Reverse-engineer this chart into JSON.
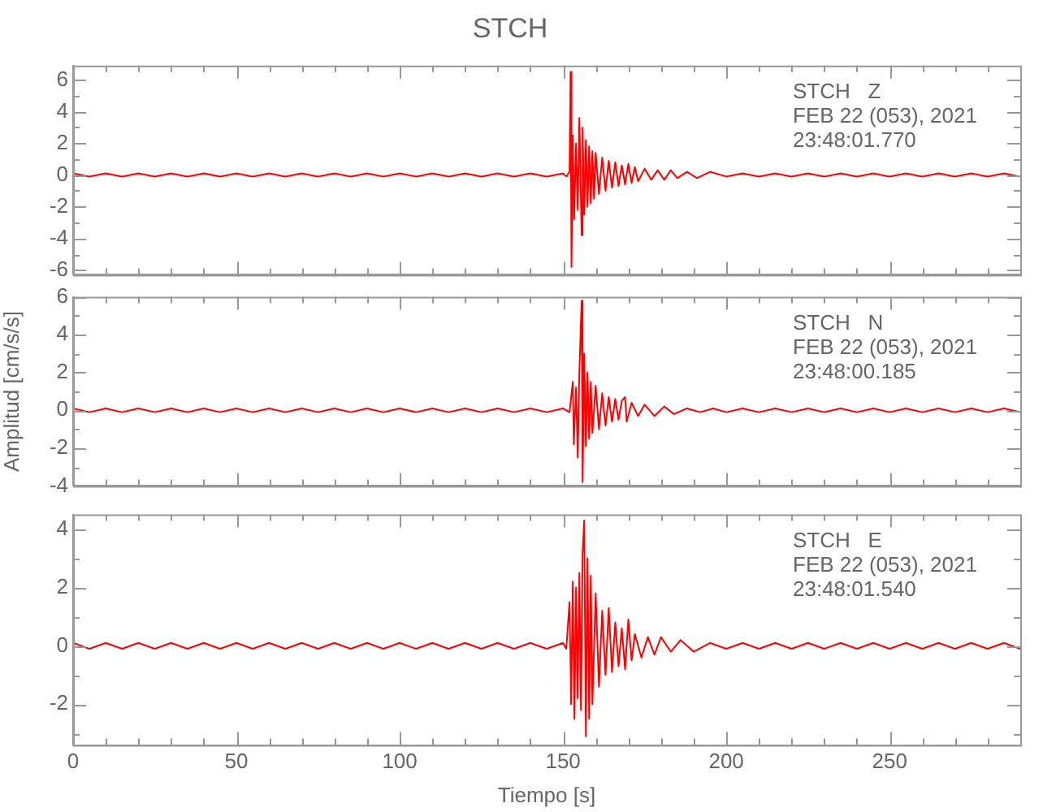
{
  "chart_data": [
    {
      "type": "line",
      "title": "STCH",
      "annotations": [
        "STCH   Z",
        "FEB 22 (053), 2021",
        "23:48:01.770"
      ],
      "xlim": [
        0,
        290
      ],
      "xticks": [
        0,
        {
          "value": 10,
          "label": null
        },
        {
          "value": 20,
          "label": null
        },
        {
          "value": 30,
          "label": null
        },
        {
          "value": 40,
          "label": null
        },
        50,
        {
          "value": 60,
          "label": null
        },
        {
          "value": 70,
          "label": null
        },
        {
          "value": 80,
          "label": null
        },
        {
          "value": 90,
          "label": null
        },
        100,
        {
          "value": 110,
          "label": null
        },
        {
          "value": 120,
          "label": null
        },
        {
          "value": 130,
          "label": null
        },
        {
          "value": 140,
          "label": null
        },
        150,
        {
          "value": 160,
          "label": null
        },
        {
          "value": 170,
          "label": null
        },
        {
          "value": 180,
          "label": null
        },
        {
          "value": 190,
          "label": null
        },
        200,
        {
          "value": 210,
          "label": null
        },
        {
          "value": 220,
          "label": null
        },
        {
          "value": 230,
          "label": null
        },
        {
          "value": 240,
          "label": null
        },
        250,
        {
          "value": 260,
          "label": null
        },
        {
          "value": 270,
          "label": null
        },
        {
          "value": 280,
          "label": null
        }
      ],
      "ylim": [
        -6.3,
        6.9
      ],
      "yticks": [
        -6,
        {
          "value": -5,
          "label": null
        },
        -4,
        {
          "value": -3,
          "label": null
        },
        -2,
        {
          "value": -1,
          "label": null
        },
        0,
        {
          "value": 1,
          "label": null
        },
        2,
        {
          "value": 3,
          "label": null
        },
        4,
        {
          "value": 5,
          "label": null
        },
        6
      ],
      "tick_labels": "y",
      "grid": false,
      "legend": false,
      "series": [
        {
          "color": "#ff0000",
          "x": [
            0,
            5,
            10,
            15,
            20,
            25,
            30,
            35,
            40,
            45,
            50,
            55,
            60,
            65,
            70,
            75,
            80,
            85,
            90,
            95,
            100,
            105,
            110,
            115,
            120,
            125,
            130,
            135,
            140,
            145,
            150,
            151,
            152,
            152.3,
            152.6,
            153,
            153.4,
            154,
            154.5,
            155,
            155.7,
            156,
            156.5,
            157,
            157.5,
            158,
            158.5,
            159,
            159.5,
            160,
            161,
            162,
            163,
            164,
            165,
            166,
            167,
            168,
            169,
            170,
            171,
            172,
            173,
            175,
            177,
            179,
            181,
            183,
            185,
            188,
            191,
            195,
            200,
            205,
            210,
            215,
            220,
            225,
            230,
            235,
            240,
            245,
            250,
            255,
            260,
            265,
            270,
            275,
            280,
            285,
            290
          ],
          "values": [
            0.1,
            -0.1,
            0.1,
            -0.1,
            0.1,
            -0.1,
            0.1,
            -0.1,
            0.1,
            -0.1,
            0.1,
            -0.1,
            0.1,
            -0.1,
            0.1,
            -0.1,
            0.1,
            -0.1,
            0.1,
            -0.1,
            0.1,
            -0.1,
            0.1,
            -0.1,
            0.1,
            -0.1,
            0.1,
            -0.1,
            0.1,
            -0.1,
            0.1,
            -0.1,
            0.2,
            6.5,
            -5.8,
            2.5,
            -2.8,
            2.0,
            -2.2,
            3.6,
            -3.8,
            3.0,
            -2.5,
            2.2,
            -2.0,
            1.8,
            -1.8,
            1.5,
            -1.5,
            1.4,
            -1.2,
            1.1,
            -1.0,
            0.9,
            -0.8,
            0.8,
            -0.7,
            0.6,
            -0.6,
            0.7,
            -0.5,
            0.5,
            -0.4,
            0.4,
            -0.3,
            0.3,
            -0.3,
            0.3,
            -0.2,
            0.2,
            -0.2,
            0.2,
            -0.1,
            0.1,
            -0.1,
            0.1,
            -0.1,
            0.1,
            -0.1,
            0.1,
            -0.1,
            0.1,
            -0.1,
            0.1,
            -0.1,
            0.1,
            -0.1,
            0.1,
            -0.1,
            0.1,
            -0.1
          ]
        }
      ]
    },
    {
      "type": "line",
      "ylabel": "Amplitud [cm/s/s]",
      "annotations": [
        "STCH   N",
        "FEB 22 (053), 2021",
        "23:48:00.185"
      ],
      "xlim": [
        0,
        290
      ],
      "xticks": [
        0,
        {
          "value": 10,
          "label": null
        },
        {
          "value": 20,
          "label": null
        },
        {
          "value": 30,
          "label": null
        },
        {
          "value": 40,
          "label": null
        },
        50,
        {
          "value": 60,
          "label": null
        },
        {
          "value": 70,
          "label": null
        },
        {
          "value": 80,
          "label": null
        },
        {
          "value": 90,
          "label": null
        },
        100,
        {
          "value": 110,
          "label": null
        },
        {
          "value": 120,
          "label": null
        },
        {
          "value": 130,
          "label": null
        },
        {
          "value": 140,
          "label": null
        },
        150,
        {
          "value": 160,
          "label": null
        },
        {
          "value": 170,
          "label": null
        },
        {
          "value": 180,
          "label": null
        },
        {
          "value": 190,
          "label": null
        },
        200,
        {
          "value": 210,
          "label": null
        },
        {
          "value": 220,
          "label": null
        },
        {
          "value": 230,
          "label": null
        },
        {
          "value": 240,
          "label": null
        },
        250,
        {
          "value": 260,
          "label": null
        },
        {
          "value": 270,
          "label": null
        },
        {
          "value": 280,
          "label": null
        }
      ],
      "ylim": [
        -4,
        6
      ],
      "yticks": [
        -4,
        {
          "value": -3,
          "label": null
        },
        -2,
        {
          "value": -1,
          "label": null
        },
        0,
        {
          "value": 1,
          "label": null
        },
        2,
        {
          "value": 3,
          "label": null
        },
        4,
        {
          "value": 5,
          "label": null
        },
        6
      ],
      "tick_labels": "y",
      "grid": false,
      "legend": false,
      "series": [
        {
          "color": "#ff0000",
          "x": [
            0,
            5,
            10,
            15,
            20,
            25,
            30,
            35,
            40,
            45,
            50,
            55,
            60,
            65,
            70,
            75,
            80,
            85,
            90,
            95,
            100,
            105,
            110,
            115,
            120,
            125,
            130,
            135,
            140,
            145,
            150,
            152,
            153,
            153.3,
            154,
            154.5,
            155,
            155.7,
            156,
            156.5,
            157,
            157.5,
            158,
            158.5,
            159,
            160,
            161,
            162,
            163,
            164,
            165,
            166,
            167,
            168,
            169,
            169.5,
            171,
            173,
            175,
            178,
            181,
            184,
            188,
            192,
            196,
            200,
            205,
            210,
            215,
            220,
            225,
            230,
            235,
            240,
            245,
            250,
            255,
            260,
            265,
            270,
            275,
            280,
            285,
            290
          ],
          "values": [
            0.1,
            -0.1,
            0.1,
            -0.1,
            0.1,
            -0.1,
            0.1,
            -0.1,
            0.1,
            -0.1,
            0.1,
            -0.1,
            0.1,
            -0.1,
            0.1,
            -0.1,
            0.1,
            -0.1,
            0.1,
            -0.1,
            0.1,
            -0.1,
            0.1,
            -0.1,
            0.1,
            -0.1,
            0.1,
            -0.1,
            0.1,
            -0.1,
            0.1,
            -0.1,
            1.5,
            -1.8,
            1.2,
            -2.5,
            2.0,
            5.8,
            -3.8,
            3.0,
            -1.9,
            2.0,
            -1.5,
            1.5,
            -1.2,
            1.3,
            -1.0,
            0.9,
            -0.8,
            0.7,
            -0.6,
            0.6,
            -0.5,
            0.5,
            0.7,
            -0.6,
            0.4,
            -0.3,
            0.3,
            -0.3,
            0.2,
            -0.2,
            0.1,
            -0.1,
            0.1,
            -0.1,
            0.1,
            -0.1,
            0.1,
            -0.1,
            0.1,
            -0.1,
            0.1,
            -0.1,
            0.1,
            -0.1,
            0.1,
            -0.1,
            0.1,
            -0.1,
            0.1,
            -0.1,
            0.1,
            -0.1
          ]
        }
      ]
    },
    {
      "type": "line",
      "xlabel": "Tiempo [s]",
      "annotations": [
        "STCH   E",
        "FEB 22 (053), 2021",
        "23:48:01.540"
      ],
      "xlim": [
        0,
        290
      ],
      "xticks": [
        0,
        {
          "value": 10,
          "label": null
        },
        {
          "value": 20,
          "label": null
        },
        {
          "value": 30,
          "label": null
        },
        {
          "value": 40,
          "label": null
        },
        50,
        {
          "value": 60,
          "label": null
        },
        {
          "value": 70,
          "label": null
        },
        {
          "value": 80,
          "label": null
        },
        {
          "value": 90,
          "label": null
        },
        100,
        {
          "value": 110,
          "label": null
        },
        {
          "value": 120,
          "label": null
        },
        {
          "value": 130,
          "label": null
        },
        {
          "value": 140,
          "label": null
        },
        150,
        {
          "value": 160,
          "label": null
        },
        {
          "value": 170,
          "label": null
        },
        {
          "value": 180,
          "label": null
        },
        {
          "value": 190,
          "label": null
        },
        200,
        {
          "value": 210,
          "label": null
        },
        {
          "value": 220,
          "label": null
        },
        {
          "value": 230,
          "label": null
        },
        {
          "value": 240,
          "label": null
        },
        250,
        {
          "value": 260,
          "label": null
        },
        {
          "value": 270,
          "label": null
        },
        {
          "value": 280,
          "label": null
        }
      ],
      "ylim": [
        -3.4,
        4.5
      ],
      "yticks": [
        {
          "value": -3,
          "label": null
        },
        -2,
        {
          "value": -1,
          "label": null
        },
        0,
        {
          "value": 1,
          "label": null
        },
        2,
        {
          "value": 3,
          "label": null
        },
        4
      ],
      "grid": false,
      "legend": false,
      "series": [
        {
          "color": "#ff0000",
          "x": [
            0,
            5,
            10,
            15,
            20,
            25,
            30,
            35,
            40,
            45,
            50,
            55,
            60,
            65,
            70,
            75,
            80,
            85,
            90,
            95,
            100,
            105,
            110,
            115,
            120,
            125,
            130,
            135,
            140,
            145,
            150,
            151,
            152,
            152.5,
            153,
            153.5,
            154,
            154.5,
            155,
            155.5,
            156,
            156.5,
            157,
            157.5,
            158,
            158.5,
            159,
            160,
            161,
            162,
            163,
            164,
            165,
            166,
            167,
            168,
            169,
            170,
            171,
            172,
            174,
            176,
            178,
            180,
            183,
            186,
            190,
            195,
            200,
            205,
            210,
            215,
            220,
            225,
            230,
            235,
            240,
            245,
            250,
            255,
            260,
            265,
            270,
            275,
            280,
            285,
            290
          ],
          "values": [
            0.1,
            -0.1,
            0.1,
            -0.1,
            0.1,
            -0.1,
            0.1,
            -0.1,
            0.1,
            -0.1,
            0.1,
            -0.1,
            0.1,
            -0.1,
            0.1,
            -0.1,
            0.1,
            -0.1,
            0.1,
            -0.1,
            0.1,
            -0.1,
            0.1,
            -0.1,
            0.1,
            -0.1,
            0.1,
            -0.1,
            0.1,
            -0.1,
            0.1,
            -0.1,
            1.5,
            -2.0,
            2.2,
            -2.5,
            2.0,
            -1.8,
            2.5,
            -2.2,
            3.2,
            4.3,
            -3.1,
            3.0,
            -2.5,
            2.4,
            -2.0,
            1.8,
            -1.4,
            1.2,
            -1.0,
            1.3,
            -0.9,
            0.8,
            -0.7,
            0.6,
            -0.8,
            0.9,
            -0.5,
            0.4,
            -0.4,
            0.3,
            -0.3,
            0.3,
            -0.2,
            0.2,
            -0.2,
            0.1,
            -0.1,
            0.1,
            -0.1,
            0.1,
            -0.1,
            0.1,
            -0.1,
            0.1,
            -0.1,
            0.1,
            -0.1,
            0.1,
            -0.1,
            0.1,
            -0.1,
            0.1,
            -0.1,
            0.1,
            -0.1
          ]
        }
      ]
    }
  ]
}
